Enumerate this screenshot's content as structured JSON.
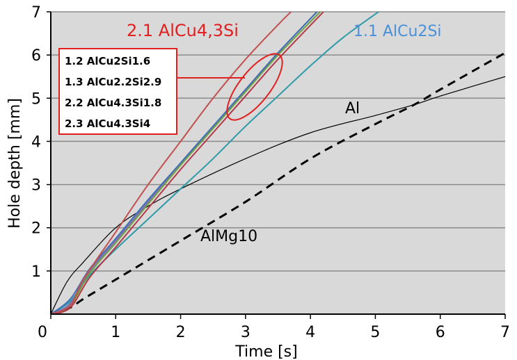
{
  "chart_data": {
    "type": "line",
    "title": "",
    "xlabel": "Time [s]",
    "ylabel": "Hole depth [mm]",
    "xlim": [
      0,
      7
    ],
    "ylim": [
      0,
      7
    ],
    "xticks": [
      "0",
      "1",
      "2",
      "3",
      "4",
      "5",
      "6",
      "7"
    ],
    "yticks": [
      "1",
      "2",
      "3",
      "4",
      "5",
      "6",
      "7"
    ],
    "grid": "horizontal",
    "series": [
      {
        "name": "Al",
        "color": "#000000",
        "dashed": false,
        "x": [
          0,
          0.25,
          0.5,
          1,
          1.5,
          2,
          3,
          4,
          5,
          5.6,
          6,
          7
        ],
        "y": [
          0,
          0.75,
          1.2,
          2.0,
          2.5,
          2.9,
          3.6,
          4.2,
          4.6,
          4.85,
          5.05,
          5.5
        ]
      },
      {
        "name": "AlMg10",
        "color": "#000000",
        "dashed": true,
        "x": [
          0,
          0.3,
          0.5,
          1,
          2,
          3,
          4,
          5,
          5.6,
          6,
          7
        ],
        "y": [
          0,
          0.15,
          0.35,
          0.8,
          1.7,
          2.6,
          3.6,
          4.4,
          4.85,
          5.2,
          6.05
        ]
      },
      {
        "name": "1.1 AlCu2Si",
        "color": "#2E9AA8",
        "dashed": false,
        "x": [
          0,
          0.3,
          0.6,
          1,
          1.5,
          2,
          2.5,
          3,
          3.5,
          4,
          4.5,
          5.05
        ],
        "y": [
          0,
          0.3,
          0.9,
          1.5,
          2.2,
          2.9,
          3.6,
          4.35,
          5.05,
          5.75,
          6.4,
          7
        ]
      },
      {
        "name": "1.2 AlCu2Si1.6",
        "color": "#7E6BB5",
        "dashed": false,
        "x": [
          0,
          0.3,
          0.6,
          1,
          1.5,
          2,
          2.5,
          3,
          3.5,
          4.1
        ],
        "y": [
          0,
          0.25,
          1.0,
          1.7,
          2.6,
          3.5,
          4.35,
          5.2,
          6.05,
          7
        ]
      },
      {
        "name": "1.3 AlCu2.2Si2.9",
        "color": "#6E9E3C",
        "dashed": false,
        "x": [
          0,
          0.3,
          0.6,
          1,
          1.5,
          2,
          2.5,
          3,
          3.5,
          4.15
        ],
        "y": [
          0,
          0.2,
          0.95,
          1.65,
          2.55,
          3.45,
          4.3,
          5.15,
          6.0,
          7
        ]
      },
      {
        "name": "2.2 AlCu4.3Si1.8",
        "color": "#B23A48",
        "dashed": false,
        "x": [
          0,
          0.3,
          0.6,
          1,
          1.5,
          2,
          2.5,
          3,
          3.5,
          4.2
        ],
        "y": [
          0,
          0.15,
          0.85,
          1.55,
          2.45,
          3.35,
          4.2,
          5.05,
          5.9,
          7
        ]
      },
      {
        "name": "2.3 AlCu4.3Si4",
        "color": "#3F6FB5",
        "dashed": false,
        "x": [
          0,
          0.3,
          0.6,
          1,
          1.5,
          2,
          2.5,
          3,
          3.5,
          4.1
        ],
        "y": [
          0,
          0.35,
          1.05,
          1.75,
          2.65,
          3.5,
          4.35,
          5.2,
          6.05,
          7
        ]
      },
      {
        "name": "2.1 AlCu4,3Si",
        "color": "#C0504D",
        "dashed": false,
        "x": [
          0,
          0.3,
          0.5,
          1,
          1.5,
          2,
          2.5,
          3,
          3.5,
          3.7
        ],
        "y": [
          0,
          0.2,
          0.8,
          1.9,
          3.0,
          4.0,
          5.0,
          5.9,
          6.7,
          7
        ]
      }
    ],
    "annotations": {
      "red_label": "2.1 AlCu4,3Si",
      "blue_label": "1.1 AlCu2Si",
      "al_label": "Al",
      "almg_label": "AlMg10",
      "boxed_legend": [
        "1.2 AlCu2Si1.6",
        "1.3 AlCu2.2Si2.9",
        "2.2 AlCu4.3Si1.8",
        "2.3 AlCu4.3Si4"
      ],
      "red_color": "#E02020",
      "blue_color": "#4A90D9"
    }
  }
}
